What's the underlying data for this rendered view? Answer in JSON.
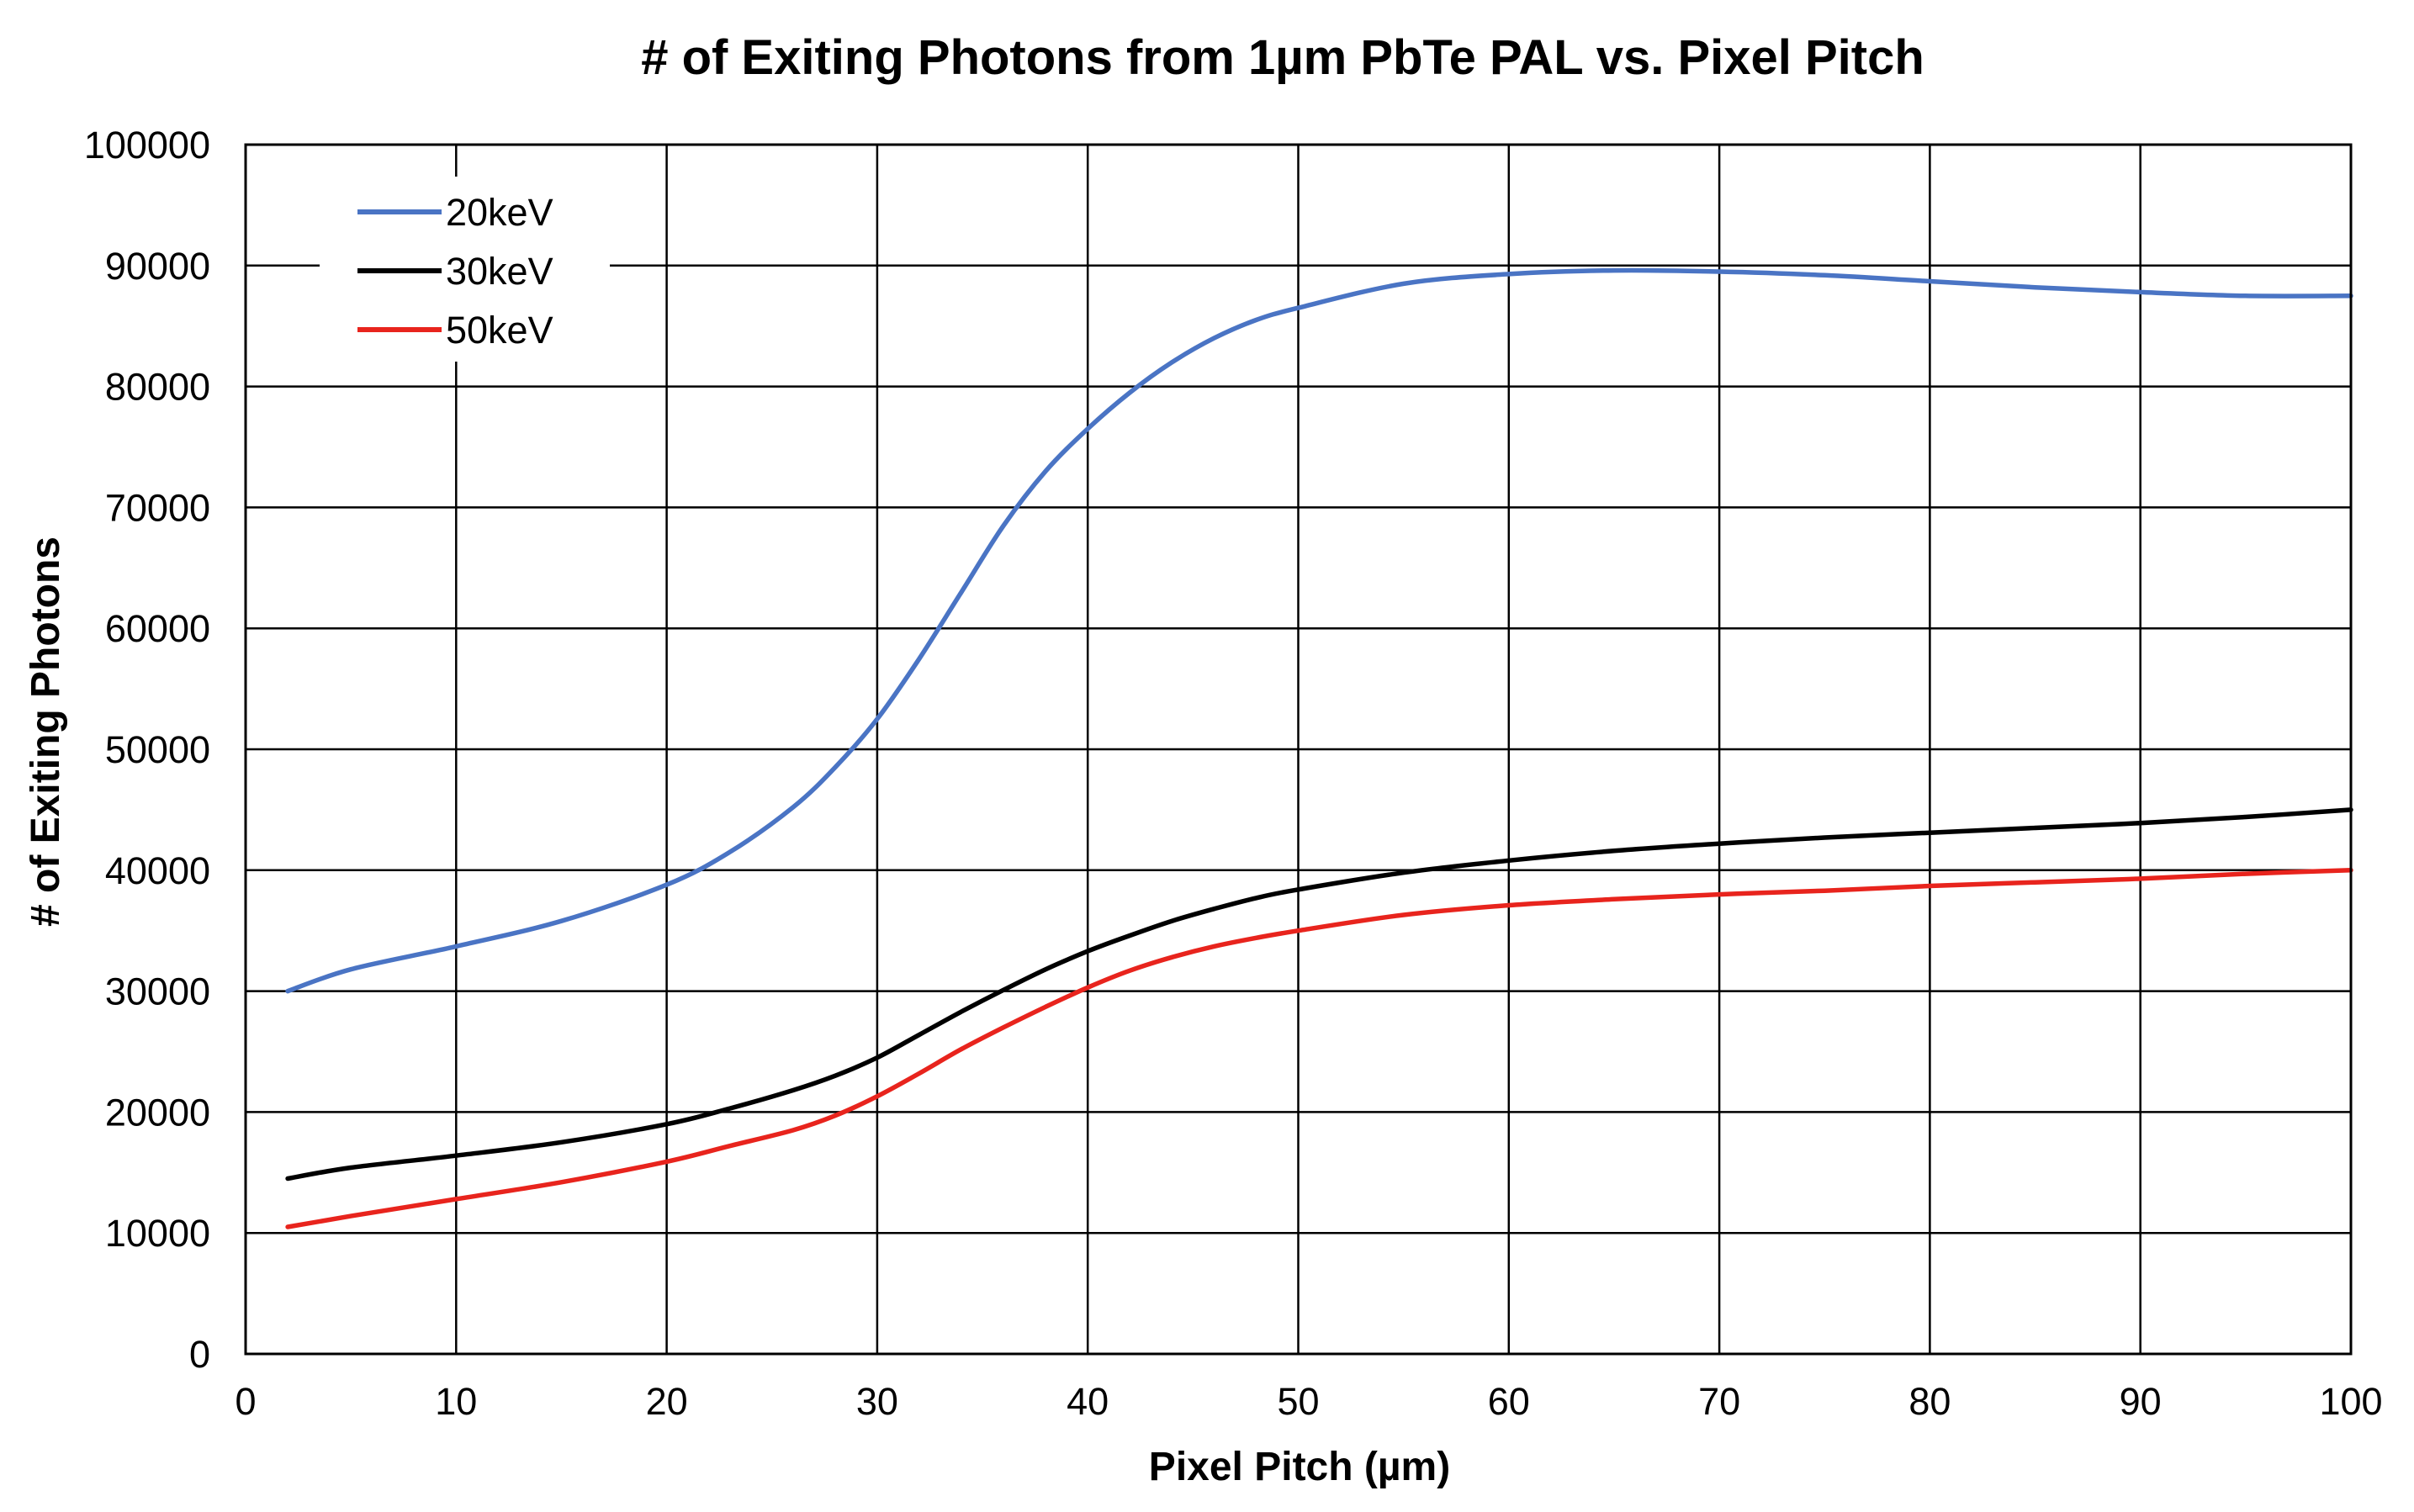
{
  "chart_data": {
    "type": "line",
    "title": "# of Exiting Photons from 1µm PbTe PAL vs. Pixel Pitch",
    "xlabel": "Pixel Pitch (µm)",
    "ylabel": "# of Exiting Photons",
    "xlim": [
      0,
      100
    ],
    "ylim": [
      0,
      100000
    ],
    "xticks": [
      "0",
      "10",
      "20",
      "30",
      "40",
      "50",
      "60",
      "70",
      "80",
      "90",
      "100"
    ],
    "yticks": [
      "0",
      "10000",
      "20000",
      "30000",
      "40000",
      "50000",
      "60000",
      "70000",
      "80000",
      "90000",
      "100000"
    ],
    "grid": true,
    "legend_position": "top-left",
    "series": [
      {
        "name": "20keV",
        "color": "#4a74c4",
        "x": [
          2,
          5,
          10,
          15,
          20,
          23,
          26,
          28,
          30,
          32,
          34,
          36,
          38,
          40,
          42,
          44,
          46,
          48,
          50,
          55,
          60,
          65,
          70,
          75,
          80,
          85,
          90,
          95,
          100
        ],
        "y": [
          30000,
          31800,
          33700,
          35800,
          38800,
          41500,
          45200,
          48500,
          52500,
          57500,
          63000,
          68500,
          73000,
          76500,
          79500,
          82000,
          84000,
          85500,
          86500,
          88500,
          89300,
          89600,
          89500,
          89200,
          88700,
          88200,
          87800,
          87500,
          87500
        ]
      },
      {
        "name": "30keV",
        "color": "#000000",
        "x": [
          2,
          5,
          10,
          15,
          20,
          23,
          26,
          28,
          30,
          32,
          34,
          36,
          38,
          40,
          42,
          44,
          46,
          48,
          50,
          55,
          60,
          65,
          70,
          75,
          80,
          85,
          90,
          95,
          100
        ],
        "y": [
          14500,
          15400,
          16400,
          17500,
          19000,
          20300,
          21800,
          23000,
          24500,
          26400,
          28300,
          30100,
          31800,
          33300,
          34600,
          35800,
          36800,
          37700,
          38400,
          39800,
          40800,
          41600,
          42200,
          42700,
          43100,
          43500,
          43900,
          44400,
          45000
        ]
      },
      {
        "name": "50keV",
        "color": "#e8241d",
        "x": [
          2,
          5,
          10,
          15,
          20,
          23,
          26,
          28,
          30,
          32,
          34,
          36,
          38,
          40,
          42,
          44,
          46,
          48,
          50,
          55,
          60,
          65,
          70,
          75,
          80,
          85,
          90,
          95,
          100
        ],
        "y": [
          10500,
          11400,
          12800,
          14200,
          15900,
          17200,
          18500,
          19700,
          21300,
          23200,
          25200,
          27000,
          28700,
          30300,
          31700,
          32800,
          33700,
          34400,
          35000,
          36300,
          37100,
          37600,
          38000,
          38300,
          38700,
          39000,
          39300,
          39700,
          40000
        ]
      }
    ]
  }
}
